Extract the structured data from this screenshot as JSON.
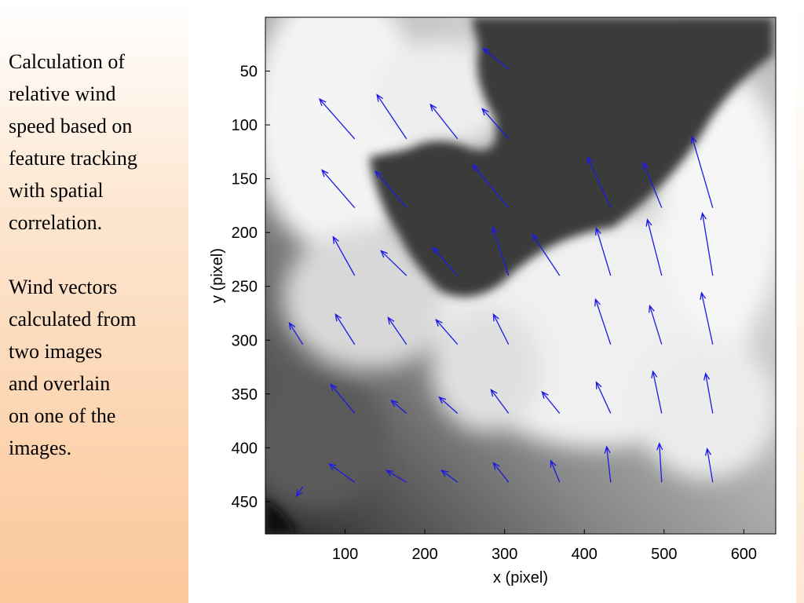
{
  "slide_text": {
    "paragraphs": [
      [
        "Calculation of",
        "relative wind",
        "speed based on",
        "feature tracking",
        "with spatial",
        "correlation."
      ],
      [
        "Wind vectors",
        "calculated from",
        "two images",
        "and overlain",
        "on one of the",
        "images."
      ]
    ]
  },
  "chart_data": {
    "type": "quiver",
    "xlabel": "x (pixel)",
    "ylabel": "y (pixel)",
    "xlim": [
      0,
      640
    ],
    "ylim": [
      0,
      480
    ],
    "y_inverted": true,
    "xticks": [
      100,
      200,
      300,
      400,
      500,
      600
    ],
    "yticks": [
      50,
      100,
      150,
      200,
      250,
      300,
      350,
      400,
      450
    ],
    "color": "#1a1ae6",
    "x": [
      305,
      112,
      177,
      241,
      305,
      112,
      177,
      305,
      433,
      497,
      561,
      112,
      177,
      241,
      305,
      369,
      433,
      497,
      561,
      47,
      112,
      177,
      241,
      305,
      433,
      497,
      561,
      112,
      177,
      241,
      305,
      369,
      433,
      497,
      561,
      47,
      112,
      177,
      241,
      305,
      369,
      433,
      497,
      561
    ],
    "y": [
      48,
      113,
      113,
      113,
      113,
      177,
      177,
      177,
      177,
      177,
      177,
      240,
      240,
      240,
      240,
      240,
      240,
      240,
      240,
      304,
      304,
      304,
      304,
      304,
      304,
      304,
      304,
      368,
      368,
      368,
      368,
      368,
      368,
      368,
      368,
      436,
      432,
      432,
      432,
      432,
      432,
      432,
      432,
      432
    ],
    "u": [
      -32,
      -44,
      -37,
      -34,
      -33,
      -41,
      -39,
      -45,
      -29,
      -23,
      -26,
      -27,
      -32,
      -31,
      -20,
      -34,
      -18,
      -18,
      -13,
      -17,
      -24,
      -23,
      -27,
      -19,
      -19,
      -15,
      -14,
      -30,
      -19,
      -23,
      -22,
      -22,
      -18,
      -11,
      -9,
      -8,
      -32,
      -25,
      -20,
      -19,
      -11,
      -5,
      -3,
      -7
    ],
    "v": [
      -19,
      -37,
      -41,
      -32,
      -28,
      -35,
      -34,
      -40,
      -47,
      -42,
      -66,
      -36,
      -23,
      -26,
      -45,
      -38,
      -44,
      -52,
      -58,
      -20,
      -28,
      -25,
      -23,
      -28,
      -42,
      -36,
      -48,
      -27,
      -12,
      -15,
      -22,
      -20,
      -29,
      -39,
      -37,
      9,
      -17,
      -11,
      -11,
      -18,
      -20,
      -33,
      -36,
      -31
    ]
  }
}
